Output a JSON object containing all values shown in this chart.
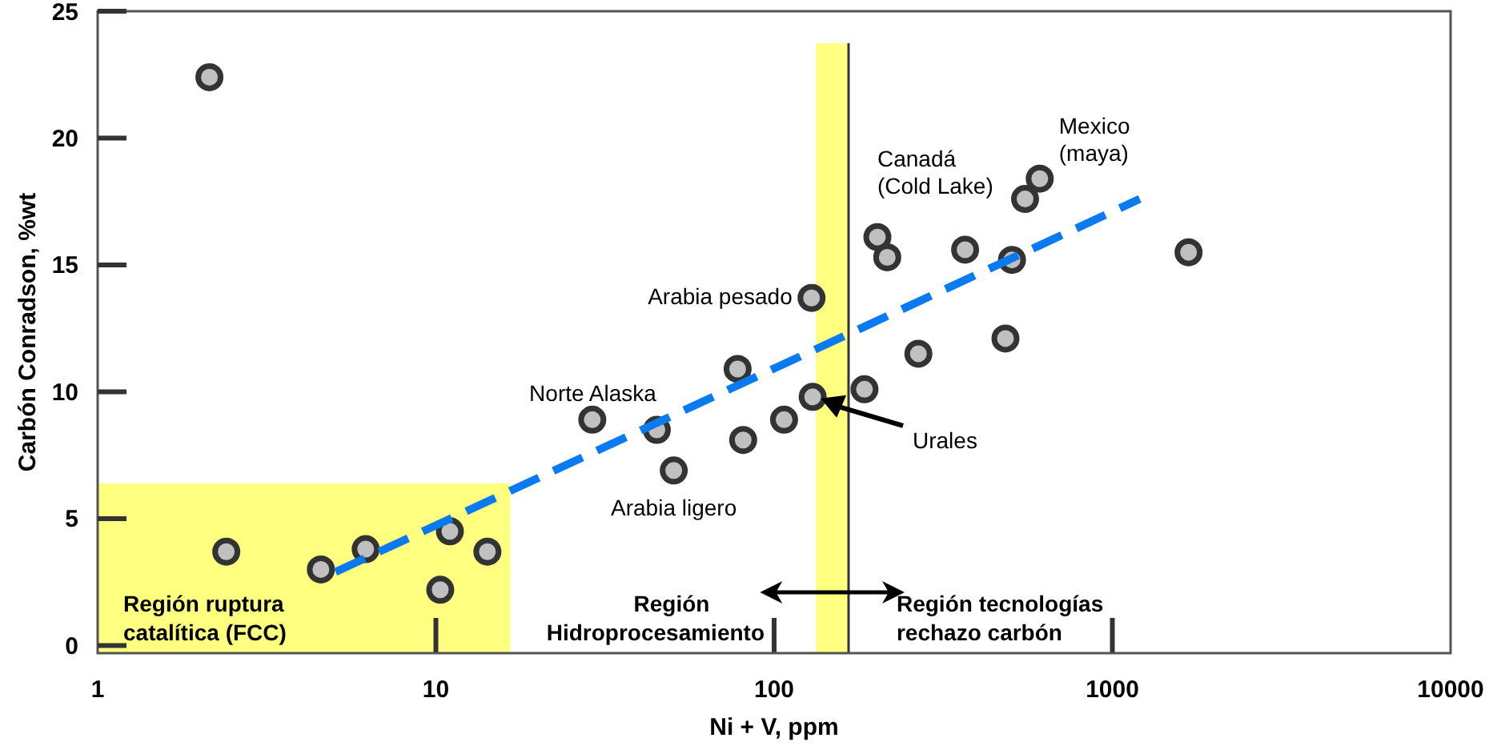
{
  "chart_data": {
    "type": "scatter",
    "xlabel": "Ni + V, ppm",
    "ylabel": "Carbón Conradson, %wt",
    "log": "x",
    "xlim": [
      1,
      10000
    ],
    "xticks": [
      1,
      10,
      100,
      1000,
      10000
    ],
    "ylim": [
      -0.3,
      25
    ],
    "yticks": [
      0,
      5,
      10,
      15,
      20,
      25
    ],
    "grid": false,
    "marker": "circle",
    "series": [
      {
        "color": "#c0c0c0",
        "x": [
          2.14,
          2.4,
          4.57,
          6.2,
          10.3,
          11,
          14.2,
          29,
          45,
          50.5,
          78,
          81,
          107,
          129,
          130,
          185,
          202,
          216,
          267,
          367,
          483,
          505,
          552,
          610,
          1680
        ],
        "values": [
          22.4,
          3.7,
          3.0,
          3.8,
          2.2,
          4.5,
          3.7,
          8.9,
          8.5,
          6.9,
          10.9,
          8.1,
          8.9,
          13.7,
          9.8,
          10.1,
          16.1,
          15.3,
          11.5,
          15.6,
          12.1,
          15.2,
          17.6,
          18.4,
          15.5
        ]
      },
      {
        "type": "line",
        "color": "#0a7af0",
        "line_style": "dashed",
        "marker": "none",
        "x": [
          5.05,
          1205
        ],
        "values": [
          2.9,
          17.6
        ]
      }
    ],
    "bands": [
      {
        "axis": "x",
        "from": 1,
        "to": 16.6,
        "color": "#ffff80",
        "label": "Región ruptura\ncatalítica (FCC)"
      },
      {
        "axis": "x",
        "from": 133,
        "to": 166,
        "color": "#ffff80"
      }
    ],
    "ref_lines": [
      {
        "axis": "x",
        "value": 166,
        "color": "#333333"
      }
    ],
    "annotations": [
      {
        "text": "Arabia pesado",
        "x": 129,
        "y": 13.7
      },
      {
        "text": "Norte Alaska",
        "x": 45,
        "y": 8.5
      },
      {
        "text": "Arabia ligero",
        "x": 50.5,
        "y": 6.9
      },
      {
        "text": "Canadá\n(Cold Lake)",
        "x": 202,
        "y": 16.1
      },
      {
        "text": "Mexico\n(maya)",
        "x": 610,
        "y": 18.4
      },
      "Urales",
      "Región\nHidroprocesamiento",
      "Región tecnologías\nrechazo carbón"
    ]
  }
}
